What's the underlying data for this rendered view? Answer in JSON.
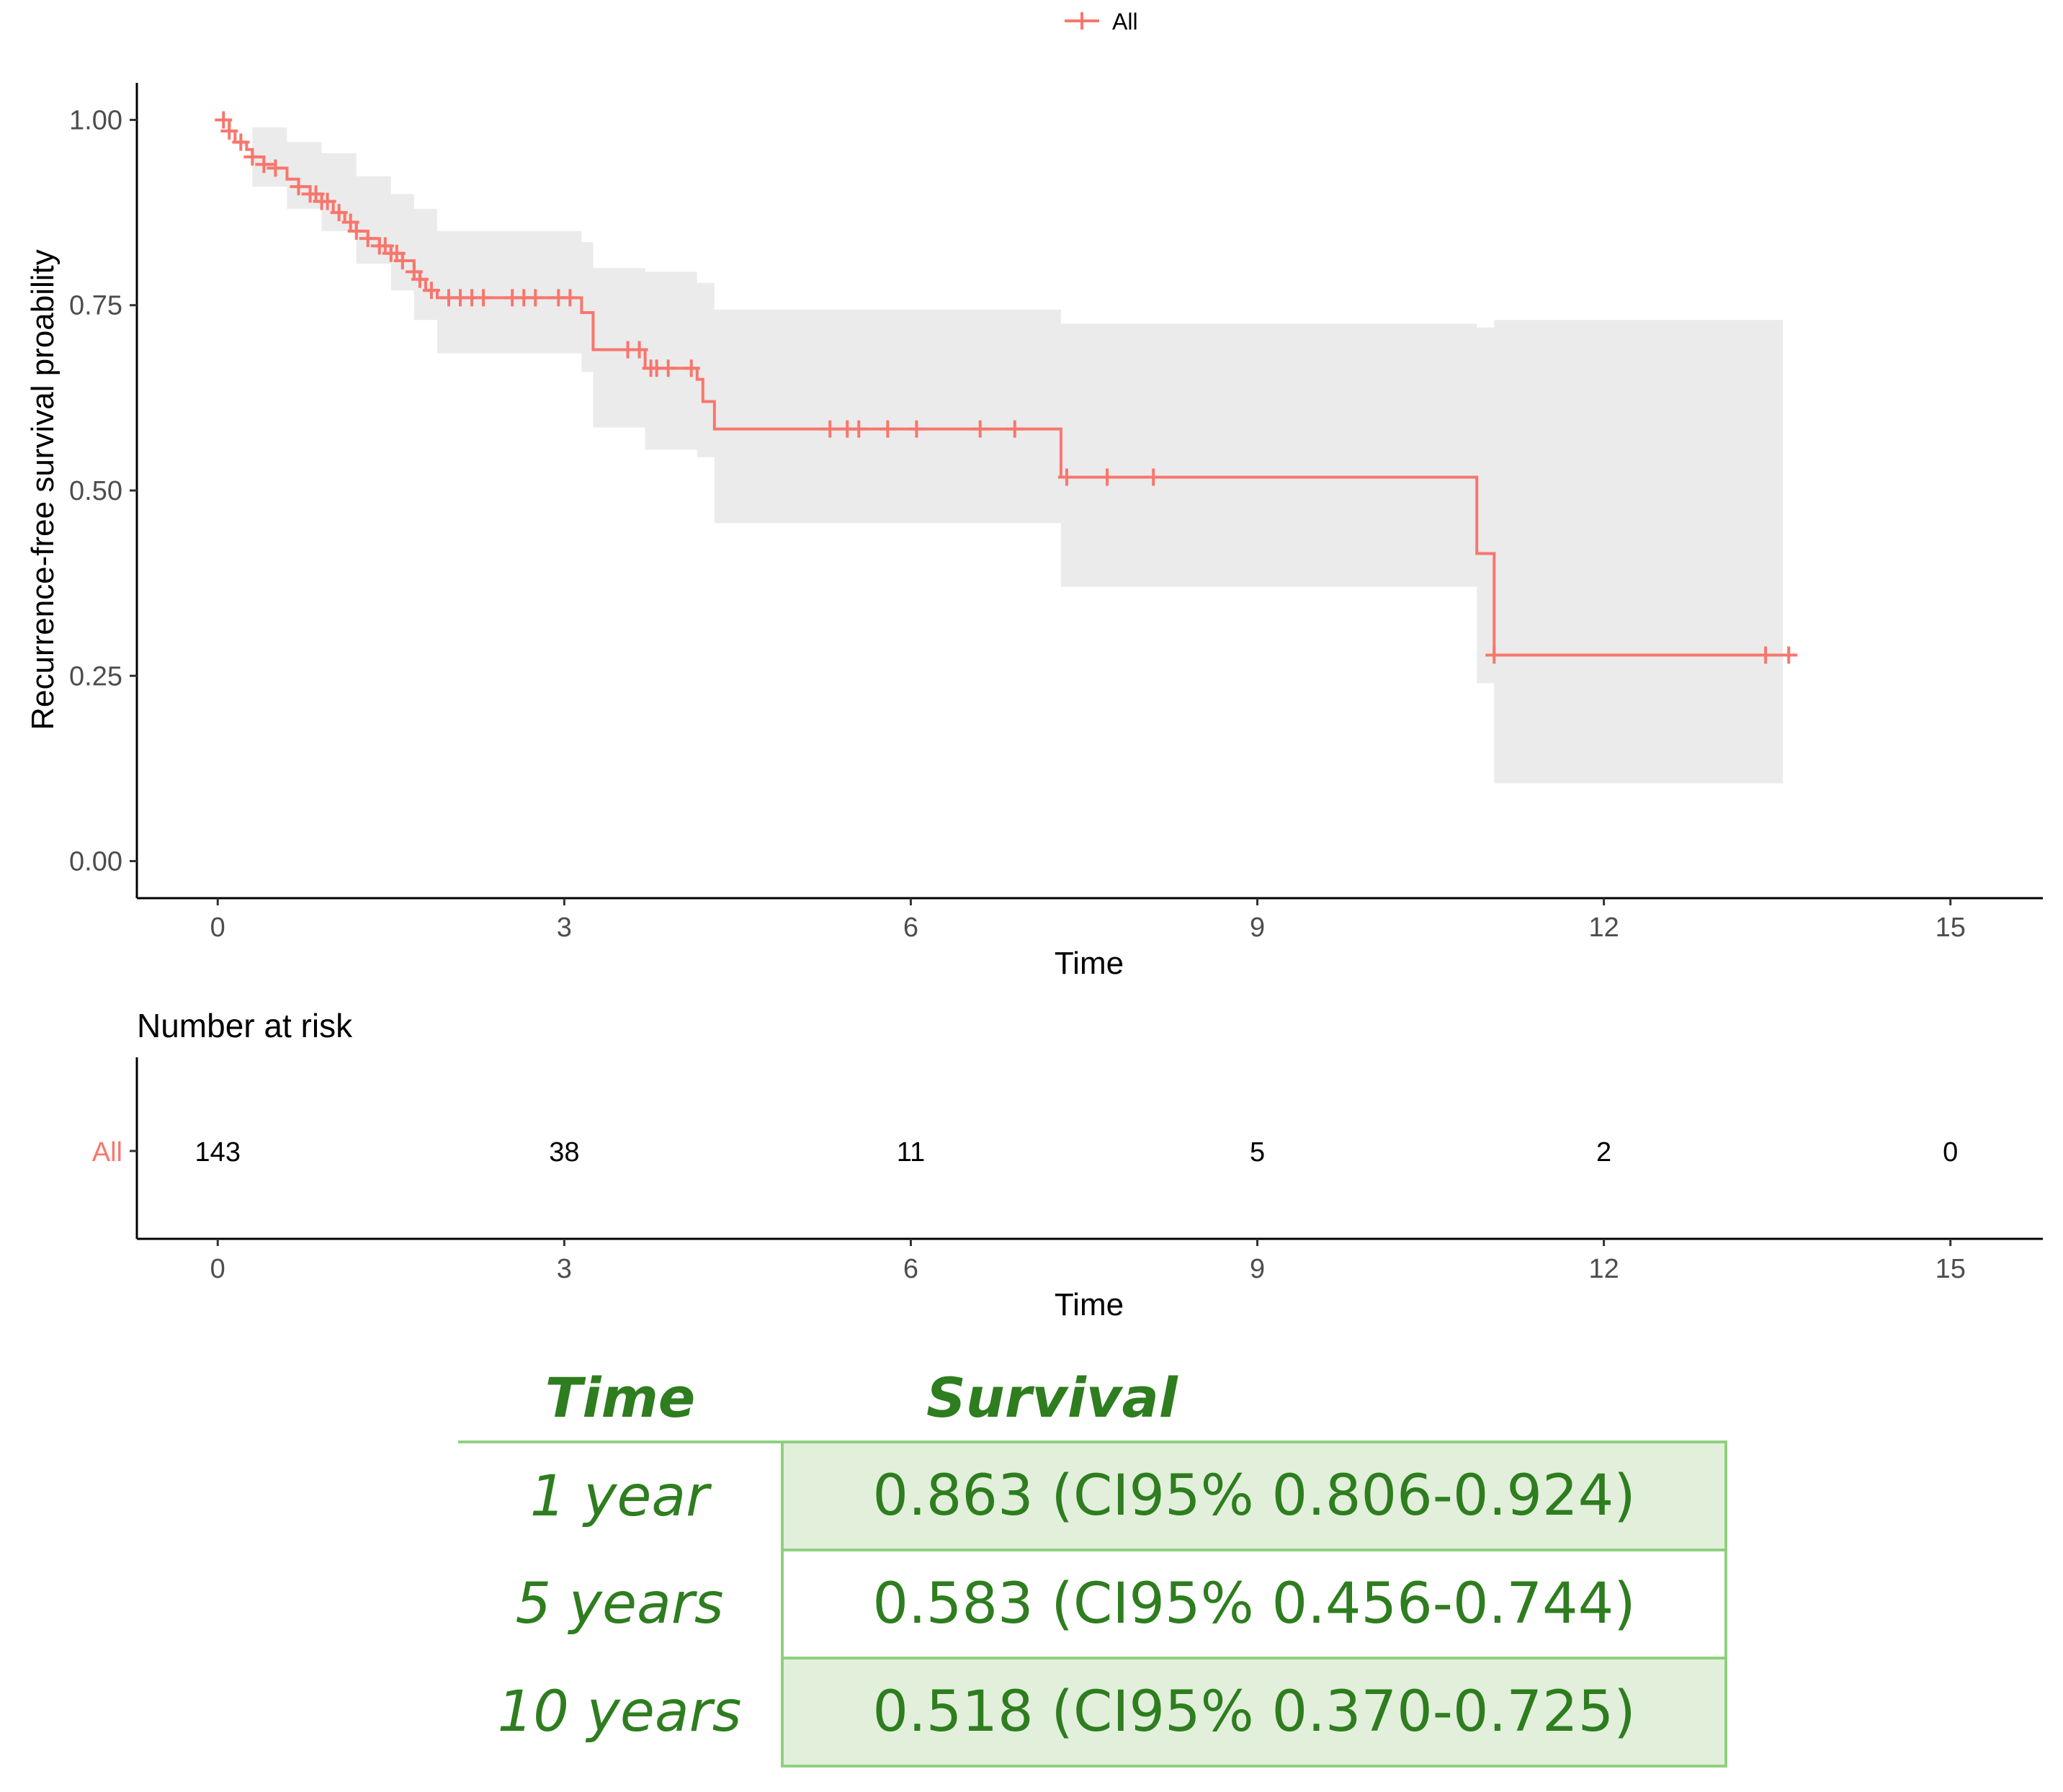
{
  "colors": {
    "series": "#f8766d",
    "ci_band": "#ebebeb",
    "table_text": "#2e7d1f",
    "table_border": "#8fd07f",
    "table_shade": "#e2efdb"
  },
  "legend": {
    "label": "All"
  },
  "chart_data": {
    "type": "line",
    "subtype": "kaplan-meier",
    "legend_position": "top",
    "xlabel": "Time",
    "ylabel": "Recurrence-free survival proability",
    "xlim": [
      -0.7,
      15.8
    ],
    "ylim": [
      -0.05,
      1.05
    ],
    "x_ticks": [
      0,
      3,
      6,
      9,
      12,
      15
    ],
    "x_tick_labels": [
      "0",
      "3",
      "6",
      "9",
      "12",
      "15"
    ],
    "y_ticks": [
      0,
      0.25,
      0.5,
      0.75,
      1.0
    ],
    "y_tick_labels": [
      "0.00",
      "0.25",
      "0.50",
      "0.75",
      "1.00"
    ],
    "series": [
      {
        "name": "All",
        "steps": [
          {
            "x": 0.0,
            "y": 1.0
          },
          {
            "x": 0.1,
            "y": 0.985
          },
          {
            "x": 0.15,
            "y": 0.97
          },
          {
            "x": 0.25,
            "y": 0.96
          },
          {
            "x": 0.3,
            "y": 0.95
          },
          {
            "x": 0.4,
            "y": 0.94
          },
          {
            "x": 0.5,
            "y": 0.935
          },
          {
            "x": 0.6,
            "y": 0.92
          },
          {
            "x": 0.7,
            "y": 0.91
          },
          {
            "x": 0.8,
            "y": 0.9
          },
          {
            "x": 0.9,
            "y": 0.89
          },
          {
            "x": 1.0,
            "y": 0.875
          },
          {
            "x": 1.1,
            "y": 0.862
          },
          {
            "x": 1.2,
            "y": 0.85
          },
          {
            "x": 1.3,
            "y": 0.84
          },
          {
            "x": 1.4,
            "y": 0.83
          },
          {
            "x": 1.5,
            "y": 0.82
          },
          {
            "x": 1.6,
            "y": 0.81
          },
          {
            "x": 1.7,
            "y": 0.795
          },
          {
            "x": 1.75,
            "y": 0.785
          },
          {
            "x": 1.8,
            "y": 0.77
          },
          {
            "x": 1.9,
            "y": 0.76
          },
          {
            "x": 3.15,
            "y": 0.74
          },
          {
            "x": 3.25,
            "y": 0.69
          },
          {
            "x": 3.7,
            "y": 0.665
          },
          {
            "x": 4.15,
            "y": 0.65
          },
          {
            "x": 4.2,
            "y": 0.62
          },
          {
            "x": 4.3,
            "y": 0.583
          },
          {
            "x": 7.3,
            "y": 0.518
          },
          {
            "x": 10.9,
            "y": 0.415
          },
          {
            "x": 11.05,
            "y": 0.278
          }
        ],
        "end_x": 13.55,
        "censor_times": [
          0.05,
          0.1,
          0.2,
          0.3,
          0.4,
          0.5,
          0.7,
          0.8,
          0.85,
          0.9,
          0.95,
          1.05,
          1.15,
          1.2,
          1.3,
          1.4,
          1.45,
          1.5,
          1.55,
          1.6,
          1.7,
          1.75,
          1.85,
          2.0,
          2.1,
          2.2,
          2.3,
          2.55,
          2.65,
          2.75,
          2.95,
          3.05,
          3.55,
          3.65,
          3.75,
          3.8,
          3.9,
          4.1,
          5.3,
          5.45,
          5.55,
          5.8,
          6.05,
          6.6,
          6.9,
          7.35,
          7.7,
          8.1,
          11.05,
          13.4,
          13.6
        ],
        "ci": [
          {
            "x": 0.0,
            "lower": 1.0,
            "upper": 1.0
          },
          {
            "x": 0.3,
            "lower": 0.91,
            "upper": 0.99
          },
          {
            "x": 0.6,
            "lower": 0.88,
            "upper": 0.97
          },
          {
            "x": 0.9,
            "lower": 0.85,
            "upper": 0.955
          },
          {
            "x": 1.2,
            "lower": 0.806,
            "upper": 0.924
          },
          {
            "x": 1.5,
            "lower": 0.77,
            "upper": 0.9
          },
          {
            "x": 1.7,
            "lower": 0.73,
            "upper": 0.88
          },
          {
            "x": 1.9,
            "lower": 0.685,
            "upper": 0.85
          },
          {
            "x": 3.15,
            "lower": 0.66,
            "upper": 0.835
          },
          {
            "x": 3.25,
            "lower": 0.585,
            "upper": 0.8
          },
          {
            "x": 3.7,
            "lower": 0.555,
            "upper": 0.795
          },
          {
            "x": 4.15,
            "lower": 0.545,
            "upper": 0.78
          },
          {
            "x": 4.3,
            "lower": 0.456,
            "upper": 0.744
          },
          {
            "x": 7.3,
            "lower": 0.37,
            "upper": 0.725
          },
          {
            "x": 10.9,
            "lower": 0.24,
            "upper": 0.72
          },
          {
            "x": 11.05,
            "lower": 0.105,
            "upper": 0.73
          }
        ]
      }
    ],
    "risk_table": {
      "title": "Number at risk",
      "strata": "All",
      "times": [
        0,
        3,
        6,
        9,
        12,
        15
      ],
      "counts": [
        "143",
        "38",
        "11",
        "5",
        "2",
        "0"
      ],
      "xlabel": "Time"
    }
  },
  "summary_table": {
    "headers": {
      "time": "Time",
      "survival": "Survival"
    },
    "rows": [
      {
        "time": "1 year",
        "survival": "0.863 (CI95% 0.806-0.924)"
      },
      {
        "time": "5 years",
        "survival": "0.583 (CI95% 0.456-0.744)"
      },
      {
        "time": "10 years",
        "survival": "0.518 (CI95% 0.370-0.725)"
      }
    ]
  }
}
